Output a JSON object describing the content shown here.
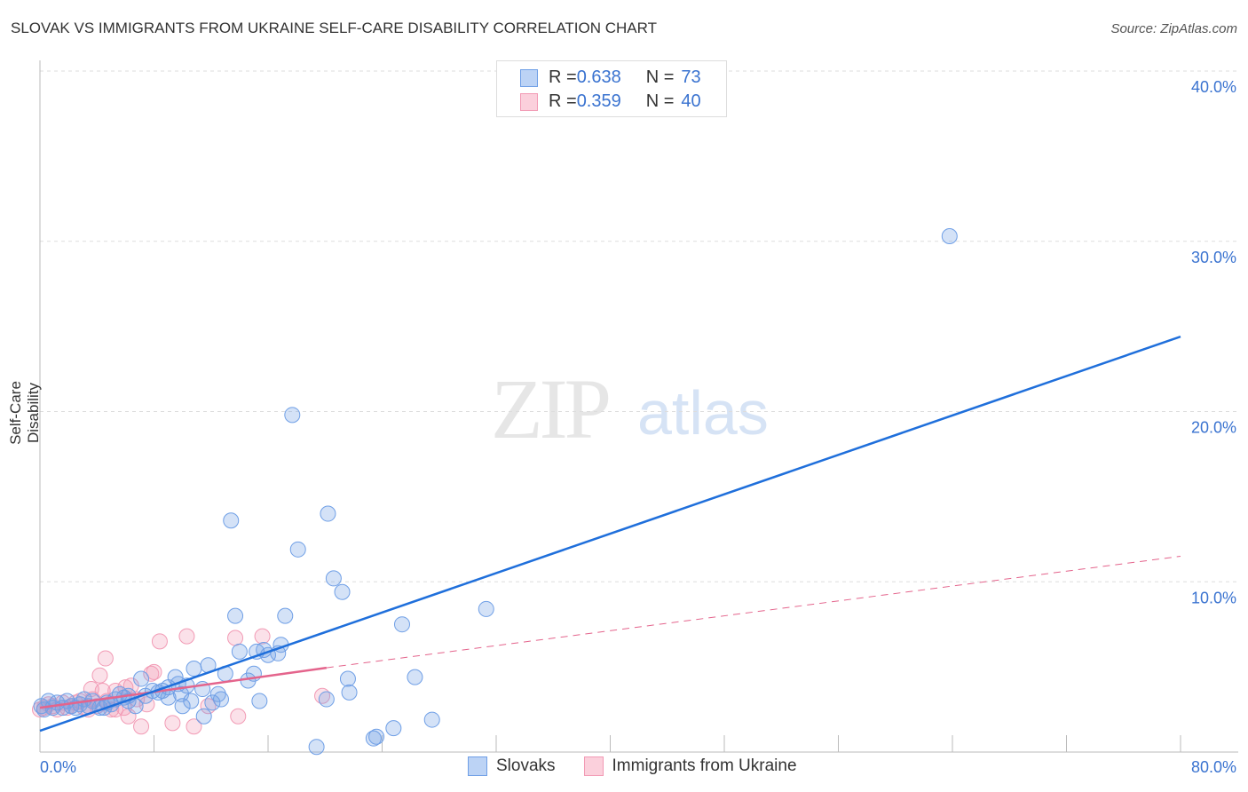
{
  "title": "SLOVAK VS IMMIGRANTS FROM UKRAINE SELF-CARE DISABILITY CORRELATION CHART",
  "source": "Source: ZipAtlas.com",
  "watermark": "ZIPatlas",
  "legend": {
    "rows": [
      {
        "r_label": "R = ",
        "r": "0.638",
        "n_label": "N = ",
        "n": "73"
      },
      {
        "r_label": "R = ",
        "r": "0.359",
        "n_label": "N = ",
        "n": "40"
      }
    ]
  },
  "chart_data": {
    "type": "scatter",
    "title": "SLOVAK VS IMMIGRANTS FROM UKRAINE SELF-CARE DISABILITY CORRELATION CHART",
    "xlabel": "",
    "ylabel": "Self-Care Disability",
    "xlim": [
      0,
      80
    ],
    "ylim": [
      0,
      40
    ],
    "x_tick_labels": [
      "0.0%",
      "80.0%"
    ],
    "y_ticks": [
      10,
      20,
      30,
      40
    ],
    "y_tick_labels": [
      "10.0%",
      "20.0%",
      "30.0%",
      "40.0%"
    ],
    "grid": true,
    "legend_placement": "bottom",
    "colors": {
      "Slovaks": "#6f9fe6",
      "Immigrants from Ukraine": "#f29bb5",
      "blue_line": "#1f6fdb",
      "pink_line": "#e4648c"
    },
    "series": [
      {
        "name": "Slovaks",
        "trend": [
          [
            0,
            1.25
          ],
          [
            80,
            24.4
          ]
        ],
        "points": [
          [
            63.8,
            30.3
          ],
          [
            17.7,
            19.8
          ],
          [
            13.4,
            13.6
          ],
          [
            20.2,
            14.0
          ],
          [
            18.1,
            11.9
          ],
          [
            20.6,
            10.2
          ],
          [
            21.2,
            9.4
          ],
          [
            31.3,
            8.4
          ],
          [
            13.7,
            8.0
          ],
          [
            17.2,
            8.0
          ],
          [
            25.4,
            7.5
          ],
          [
            16.9,
            6.3
          ],
          [
            14.0,
            5.9
          ],
          [
            15.2,
            5.9
          ],
          [
            15.7,
            6.0
          ],
          [
            16.7,
            5.8
          ],
          [
            16.0,
            5.7
          ],
          [
            11.8,
            5.1
          ],
          [
            10.8,
            4.9
          ],
          [
            13.0,
            4.6
          ],
          [
            15.0,
            4.6
          ],
          [
            9.5,
            4.4
          ],
          [
            7.1,
            4.3
          ],
          [
            21.6,
            4.3
          ],
          [
            26.3,
            4.4
          ],
          [
            14.6,
            4.2
          ],
          [
            10.3,
            3.9
          ],
          [
            11.4,
            3.7
          ],
          [
            7.9,
            3.6
          ],
          [
            8.6,
            3.6
          ],
          [
            21.7,
            3.5
          ],
          [
            12.5,
            3.4
          ],
          [
            9.9,
            3.4
          ],
          [
            7.4,
            3.3
          ],
          [
            9.0,
            3.2
          ],
          [
            12.7,
            3.1
          ],
          [
            10.6,
            3.0
          ],
          [
            12.1,
            2.9
          ],
          [
            15.4,
            3.0
          ],
          [
            20.1,
            3.1
          ],
          [
            5.9,
            3.2
          ],
          [
            5.3,
            3.1
          ],
          [
            6.7,
            2.7
          ],
          [
            10.0,
            2.7
          ],
          [
            11.5,
            2.1
          ],
          [
            4.7,
            2.9
          ],
          [
            4.2,
            2.6
          ],
          [
            3.4,
            2.7
          ],
          [
            2.8,
            2.8
          ],
          [
            2.2,
            2.7
          ],
          [
            1.6,
            2.6
          ],
          [
            0.9,
            2.6
          ],
          [
            0.3,
            2.5
          ],
          [
            0.1,
            2.7
          ],
          [
            27.5,
            1.9
          ],
          [
            24.8,
            1.4
          ],
          [
            23.4,
            0.8
          ],
          [
            23.6,
            0.9
          ],
          [
            19.4,
            0.3
          ],
          [
            0.6,
            3.0
          ],
          [
            1.2,
            2.9
          ],
          [
            1.9,
            3.0
          ],
          [
            2.5,
            2.6
          ],
          [
            3.1,
            3.1
          ],
          [
            3.7,
            3.0
          ],
          [
            4.5,
            2.6
          ],
          [
            5.0,
            2.8
          ],
          [
            6.2,
            3.0
          ],
          [
            8.3,
            3.5
          ],
          [
            9.7,
            4.0
          ],
          [
            6.2,
            3.3
          ],
          [
            5.6,
            3.4
          ],
          [
            9.0,
            3.8
          ]
        ]
      },
      {
        "name": "Immigrants from Ukraine",
        "trend": [
          [
            0,
            2.6
          ],
          [
            20.1,
            4.95
          ]
        ],
        "trend_dashed": [
          [
            20.1,
            4.95
          ],
          [
            80,
            11.5
          ]
        ],
        "points": [
          [
            8.4,
            6.5
          ],
          [
            10.3,
            6.8
          ],
          [
            13.7,
            6.7
          ],
          [
            15.6,
            6.8
          ],
          [
            4.6,
            5.5
          ],
          [
            4.2,
            4.5
          ],
          [
            7.8,
            4.6
          ],
          [
            8.0,
            4.7
          ],
          [
            6.4,
            3.9
          ],
          [
            5.3,
            3.6
          ],
          [
            4.4,
            3.6
          ],
          [
            3.6,
            3.7
          ],
          [
            6.0,
            3.8
          ],
          [
            19.8,
            3.3
          ],
          [
            7.1,
            1.5
          ],
          [
            9.3,
            1.7
          ],
          [
            10.8,
            1.5
          ],
          [
            13.9,
            2.1
          ],
          [
            6.2,
            2.1
          ],
          [
            5.3,
            2.5
          ],
          [
            11.8,
            2.7
          ],
          [
            6.8,
            3.1
          ],
          [
            2.8,
            3.0
          ],
          [
            2.2,
            2.7
          ],
          [
            1.6,
            2.9
          ],
          [
            0.9,
            2.7
          ],
          [
            0.3,
            2.6
          ],
          [
            3.4,
            2.5
          ],
          [
            4.0,
            2.7
          ],
          [
            4.7,
            3.0
          ],
          [
            3.1,
            2.6
          ],
          [
            2.5,
            2.9
          ],
          [
            1.2,
            2.5
          ],
          [
            0.6,
            2.8
          ],
          [
            5.0,
            2.5
          ],
          [
            5.9,
            2.6
          ],
          [
            3.7,
            3.1
          ],
          [
            7.5,
            2.8
          ],
          [
            1.9,
            2.6
          ],
          [
            0.0,
            2.5
          ]
        ]
      }
    ]
  }
}
